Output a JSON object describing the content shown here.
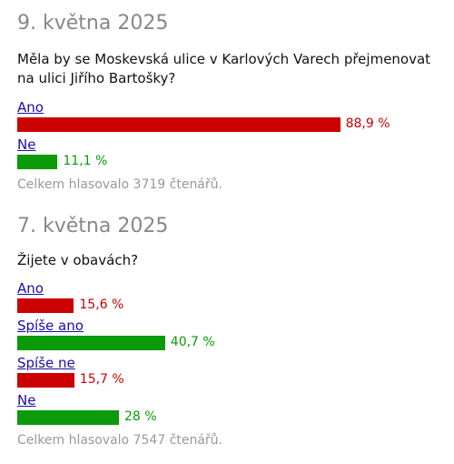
{
  "polls": [
    {
      "date": "9. května 2025",
      "question": "Měla by se Moskevská ulice v Karlových Varech přejmenovat na ulici Jiřího Bartošky?",
      "answers": [
        {
          "label": "Ano",
          "percent_text": "88,9 %",
          "percent": 88.9,
          "color": "#cc0000"
        },
        {
          "label": "Ne",
          "percent_text": "11,1 %",
          "percent": 11.1,
          "color": "#0a9a0a"
        }
      ],
      "total": "Celkem hlasovalo 3719 čtenářů."
    },
    {
      "date": "7. května 2025",
      "question": "Žijete v obavách?",
      "answers": [
        {
          "label": "Ano",
          "percent_text": "15,6 %",
          "percent": 15.6,
          "color": "#cc0000"
        },
        {
          "label": "Spíše ano",
          "percent_text": "40,7 %",
          "percent": 40.7,
          "color": "#0a9a0a"
        },
        {
          "label": "Spíše ne",
          "percent_text": "15,7 %",
          "percent": 15.7,
          "color": "#cc0000"
        },
        {
          "label": "Ne",
          "percent_text": "28 %",
          "percent": 28,
          "color": "#0a9a0a"
        }
      ],
      "total": "Celkem hlasovalo 7547 čtenářů."
    }
  ]
}
